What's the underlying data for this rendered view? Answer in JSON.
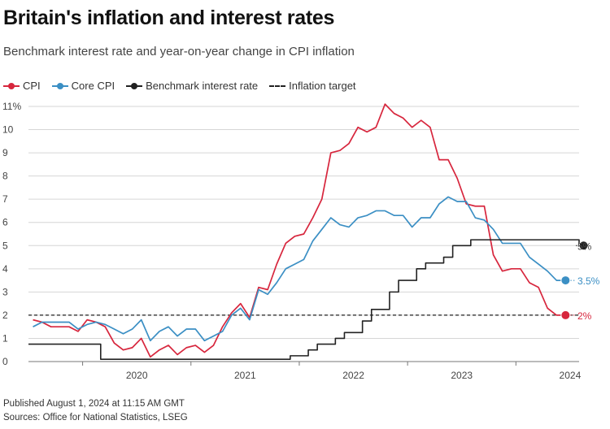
{
  "header": {
    "title": "Britain's inflation and interest rates",
    "subtitle": "Benchmark interest rate and year-on-year change in CPI inflation"
  },
  "legend": [
    {
      "label": "CPI",
      "color": "#d7263d",
      "style": "line-dot"
    },
    {
      "label": "Core CPI",
      "color": "#3b8fc4",
      "style": "line-dot"
    },
    {
      "label": "Benchmark interest rate",
      "color": "#222222",
      "style": "line-dot"
    },
    {
      "label": "Inflation target",
      "color": "#222222",
      "style": "dashed"
    }
  ],
  "footer": {
    "published": "Published August 1, 2024 at 11:15 AM GMT",
    "sources": "Sources: Office for National Statistics, LSEG"
  },
  "chart_data": {
    "type": "line",
    "title": "Britain's inflation and interest rates",
    "subtitle": "Benchmark interest rate and year-on-year change in CPI inflation",
    "xlabel": "",
    "ylabel": "",
    "ylim": [
      0,
      11
    ],
    "xlim": [
      "2019-07",
      "2024-08"
    ],
    "y_ticks": [
      {
        "value": 0,
        "label": "0"
      },
      {
        "value": 1,
        "label": "1"
      },
      {
        "value": 2,
        "label": "2"
      },
      {
        "value": 3,
        "label": "3"
      },
      {
        "value": 4,
        "label": "4"
      },
      {
        "value": 5,
        "label": "5"
      },
      {
        "value": 6,
        "label": "6"
      },
      {
        "value": 7,
        "label": "7"
      },
      {
        "value": 8,
        "label": "8"
      },
      {
        "value": 9,
        "label": "9"
      },
      {
        "value": 10,
        "label": "10"
      },
      {
        "value": 11,
        "label": "11%"
      }
    ],
    "x_ticks": [
      {
        "value": "2020-01",
        "label": "2020"
      },
      {
        "value": "2021-01",
        "label": "2021"
      },
      {
        "value": "2022-01",
        "label": "2022"
      },
      {
        "value": "2023-01",
        "label": "2023"
      },
      {
        "value": "2024-01",
        "label": "2024"
      }
    ],
    "grid": "horizontal",
    "legend_position": "top-left",
    "start_month": "2019-07",
    "series": [
      {
        "name": "CPI",
        "color": "#d7263d",
        "end_label": "2%",
        "values": [
          1.8,
          1.7,
          1.5,
          1.5,
          1.5,
          1.3,
          1.8,
          1.7,
          1.5,
          0.8,
          0.5,
          0.6,
          1.0,
          0.2,
          0.5,
          0.7,
          0.3,
          0.6,
          0.7,
          0.4,
          0.7,
          1.5,
          2.1,
          2.5,
          1.9,
          3.2,
          3.1,
          4.2,
          5.1,
          5.4,
          5.5,
          6.2,
          7.0,
          9.0,
          9.1,
          9.4,
          10.1,
          9.9,
          10.1,
          11.1,
          10.7,
          10.5,
          10.1,
          10.4,
          10.1,
          8.7,
          8.7,
          7.9,
          6.8,
          6.7,
          6.7,
          4.6,
          3.9,
          4.0,
          4.0,
          3.4,
          3.2,
          2.3,
          2.0,
          2.0
        ]
      },
      {
        "name": "Core CPI",
        "color": "#3b8fc4",
        "end_label": "3.5%",
        "values": [
          1.5,
          1.7,
          1.7,
          1.7,
          1.7,
          1.4,
          1.6,
          1.7,
          1.6,
          1.4,
          1.2,
          1.4,
          1.8,
          0.9,
          1.3,
          1.5,
          1.1,
          1.4,
          1.4,
          0.9,
          1.1,
          1.3,
          2.0,
          2.3,
          1.8,
          3.1,
          2.9,
          3.4,
          4.0,
          4.2,
          4.4,
          5.2,
          5.7,
          6.2,
          5.9,
          5.8,
          6.2,
          6.3,
          6.5,
          6.5,
          6.3,
          6.3,
          5.8,
          6.2,
          6.2,
          6.8,
          7.1,
          6.9,
          6.9,
          6.2,
          6.1,
          5.7,
          5.1,
          5.1,
          5.1,
          4.5,
          4.2,
          3.9,
          3.5,
          3.5
        ]
      },
      {
        "name": "Benchmark interest rate",
        "color": "#222222",
        "step": true,
        "end_label": "5%",
        "values": [
          0.75,
          0.75,
          0.75,
          0.75,
          0.75,
          0.75,
          0.75,
          0.75,
          0.1,
          0.1,
          0.1,
          0.1,
          0.1,
          0.1,
          0.1,
          0.1,
          0.1,
          0.1,
          0.1,
          0.1,
          0.1,
          0.1,
          0.1,
          0.1,
          0.1,
          0.1,
          0.1,
          0.1,
          0.1,
          0.25,
          0.25,
          0.5,
          0.75,
          0.75,
          1.0,
          1.25,
          1.25,
          1.75,
          2.25,
          2.25,
          3.0,
          3.5,
          3.5,
          4.0,
          4.25,
          4.25,
          4.5,
          5.0,
          5.0,
          5.25,
          5.25,
          5.25,
          5.25,
          5.25,
          5.25,
          5.25,
          5.25,
          5.25,
          5.25,
          5.25,
          5.25,
          5.0
        ]
      },
      {
        "name": "Inflation target",
        "color": "#222222",
        "dashed": true,
        "values": [
          2,
          2
        ]
      }
    ]
  }
}
